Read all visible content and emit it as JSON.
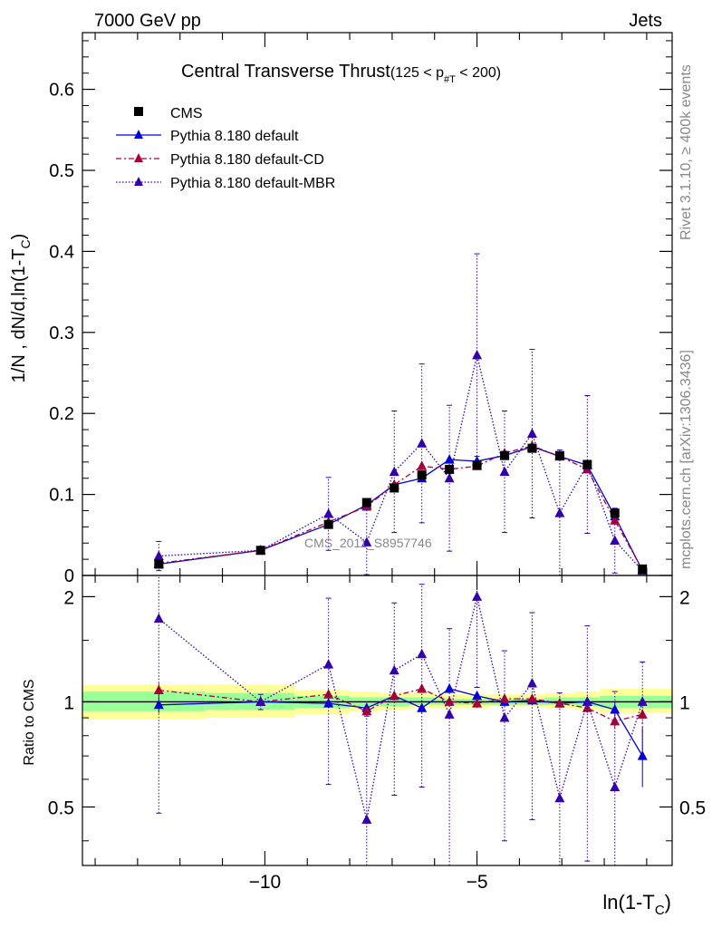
{
  "header": {
    "left": "7000 GeV pp",
    "right": "Jets"
  },
  "title": {
    "main": "Central Transverse Thrust",
    "range": "(125 < p",
    "sub": "#T",
    "range_end": "  < 200)"
  },
  "side_text": {
    "rivet": "Rivet 3.1.10, ≥ 400k events",
    "mcplots": "mcplots.cern.ch [arXiv:1306.3436]"
  },
  "watermark": "CMS_2011_S8957746",
  "legend": [
    {
      "label": "CMS"
    },
    {
      "label": "Pythia 8.180 default"
    },
    {
      "label": "Pythia 8.180 default-CD"
    },
    {
      "label": "Pythia 8.180 default-MBR"
    }
  ],
  "axes": {
    "ylabel_main": "1/N , dN/d,ln(1-T",
    "ylabel_sub": "C",
    "ylabel_end": ")",
    "xlabel_main": "ln(1-T",
    "xlabel_sub": "C",
    "xlabel_end": ")",
    "ratio_ylabel": "Ratio to CMS"
  },
  "colors": {
    "cms": "#000000",
    "default": "#0000dd",
    "cd": "#aa0033",
    "mbr": "#3300aa",
    "band_yellow": "#ffff99",
    "band_green": "#99ff99"
  },
  "chart_data": {
    "type": "scatter",
    "title": "Central Transverse Thrust (125 < p_T < 200)",
    "xlabel": "ln(1-T_C)",
    "ylabel": "1/N dN/d ln(1-T_C)",
    "xlim": [
      -14.3,
      -0.4
    ],
    "ylim": [
      0,
      0.67
    ],
    "xticks": [
      -10,
      -5
    ],
    "xtick_labels": [
      "−10",
      "−5"
    ],
    "yticks": [
      0,
      0.1,
      0.2,
      0.3,
      0.4,
      0.5,
      0.6
    ],
    "ytick_labels": [
      "0",
      "0.1",
      "0.2",
      "0.3",
      "0.4",
      "0.5",
      "0.6"
    ],
    "x": [
      -12.5,
      -10.1,
      -8.5,
      -7.6,
      -6.95,
      -6.3,
      -5.65,
      -5.0,
      -4.35,
      -3.7,
      -3.05,
      -2.4,
      -1.75,
      -1.1
    ],
    "series": [
      {
        "name": "CMS",
        "style": "square",
        "values": [
          0.014,
          0.031,
          0.063,
          0.09,
          0.108,
          0.124,
          0.131,
          0.136,
          0.148,
          0.157,
          0.148,
          0.137,
          0.077,
          0.008
        ]
      },
      {
        "name": "Pythia 8.180 default",
        "style": "line",
        "values": [
          0.014,
          0.031,
          0.063,
          0.087,
          0.112,
          0.12,
          0.143,
          0.141,
          0.148,
          0.159,
          0.147,
          0.136,
          0.073,
          0.006
        ],
        "errors": [
          0.001,
          0.001,
          0.002,
          0.002,
          0.003,
          0.003,
          0.004,
          0.004,
          0.004,
          0.004,
          0.004,
          0.004,
          0.003,
          0.001
        ]
      },
      {
        "name": "Pythia 8.180 default-CD",
        "style": "dashed",
        "values": [
          0.015,
          0.031,
          0.066,
          0.085,
          0.112,
          0.135,
          0.131,
          0.135,
          0.151,
          0.16,
          0.147,
          0.131,
          0.068,
          0.007
        ],
        "errors": [
          0.001,
          0.001,
          0.002,
          0.002,
          0.003,
          0.003,
          0.004,
          0.004,
          0.004,
          0.004,
          0.004,
          0.004,
          0.003,
          0.001
        ]
      },
      {
        "name": "Pythia 8.180 default-MBR",
        "style": "dotted",
        "values": [
          0.024,
          0.031,
          0.076,
          0.041,
          0.128,
          0.163,
          0.12,
          0.272,
          0.128,
          0.175,
          0.077,
          0.137,
          0.043,
          0.006
        ],
        "errors": [
          0.018,
          0.003,
          0.045,
          0.04,
          0.075,
          0.098,
          0.09,
          0.125,
          0.075,
          0.104,
          0.078,
          0.085,
          0.04,
          0.003
        ]
      }
    ],
    "ratio": {
      "ylabel": "Ratio to CMS",
      "ylim": [
        0.34,
        2.3
      ],
      "scale": "log",
      "yticks": [
        0.5,
        1,
        2
      ],
      "ytick_labels": [
        "0.5",
        "1",
        "2"
      ],
      "band_edges": [
        -14.3,
        -11.4,
        -9.3,
        -8.0,
        -7.3,
        -6.6,
        -6.0,
        -5.3,
        -4.7,
        -4.0,
        -3.4,
        -2.7,
        -2.1,
        -1.4,
        -0.4
      ],
      "band_yellow": [
        [
          0.89,
          1.12
        ],
        [
          0.9,
          1.12
        ],
        [
          0.92,
          1.08
        ],
        [
          0.94,
          1.07
        ],
        [
          0.95,
          1.06
        ],
        [
          0.96,
          1.06
        ],
        [
          0.96,
          1.05
        ],
        [
          0.96,
          1.05
        ],
        [
          0.97,
          1.05
        ],
        [
          0.97,
          1.05
        ],
        [
          0.96,
          1.06
        ],
        [
          0.95,
          1.07
        ],
        [
          0.93,
          1.09
        ],
        [
          0.93,
          1.09
        ]
      ],
      "band_green": [
        [
          0.94,
          1.07
        ],
        [
          0.95,
          1.06
        ],
        [
          0.96,
          1.04
        ],
        [
          0.97,
          1.03
        ],
        [
          0.97,
          1.03
        ],
        [
          0.98,
          1.03
        ],
        [
          0.98,
          1.02
        ],
        [
          0.98,
          1.02
        ],
        [
          0.98,
          1.02
        ],
        [
          0.98,
          1.02
        ],
        [
          0.98,
          1.03
        ],
        [
          0.97,
          1.03
        ],
        [
          0.96,
          1.04
        ],
        [
          0.96,
          1.04
        ]
      ],
      "series": [
        {
          "name": "Pythia 8.180 default",
          "values": [
            0.98,
            1.0,
            0.99,
            0.96,
            1.04,
            0.96,
            1.09,
            1.04,
            1.0,
            1.01,
            0.99,
            1.0,
            0.95,
            0.7
          ],
          "errors": [
            0.05,
            0.03,
            0.03,
            0.03,
            0.03,
            0.03,
            0.03,
            0.03,
            0.03,
            0.03,
            0.03,
            0.03,
            0.04,
            0.13
          ]
        },
        {
          "name": "Pythia 8.180 default-CD",
          "values": [
            1.08,
            1.0,
            1.05,
            0.94,
            1.04,
            1.09,
            1.0,
            0.99,
            1.02,
            1.02,
            0.99,
            0.96,
            0.88,
            0.92
          ],
          "errors": [
            0.05,
            0.03,
            0.03,
            0.03,
            0.03,
            0.03,
            0.03,
            0.03,
            0.03,
            0.03,
            0.03,
            0.03,
            0.04,
            0.1
          ]
        },
        {
          "name": "Pythia 8.180 default-MBR",
          "values": [
            1.73,
            1.0,
            1.28,
            0.46,
            1.23,
            1.37,
            0.92,
            2.0,
            0.9,
            1.13,
            0.53,
            1.0,
            0.57,
            1.0
          ],
          "errors": [
            1.25,
            0.05,
            0.7,
            0.45,
            0.69,
            0.8,
            0.7,
            0.9,
            0.5,
            0.67,
            0.53,
            0.65,
            0.5,
            0.3
          ]
        }
      ]
    }
  }
}
